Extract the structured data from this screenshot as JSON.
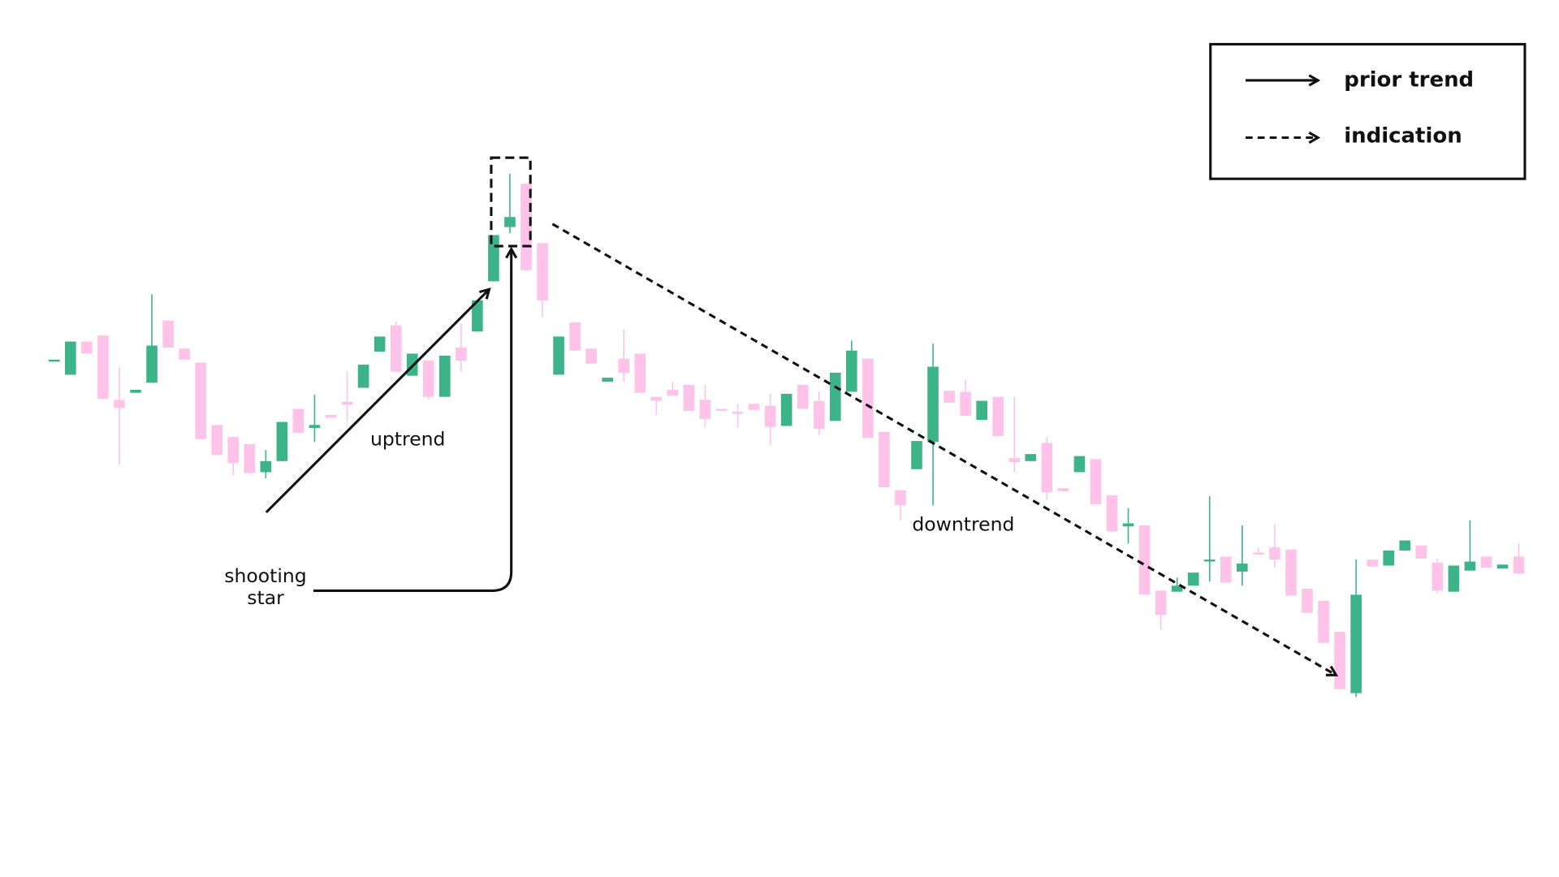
{
  "chart_data": {
    "type": "candlestick",
    "up_color": "#3db38a",
    "down_color": "#ffc3ea",
    "ylim": [
      27,
      900
    ],
    "series": [
      {
        "open": [
          542,
          527,
          560,
          566,
          502,
          509,
          519,
          581,
          553,
          539,
          477,
          465,
          458,
          430,
          441,
          493,
          474,
          487,
          500,
          514,
          550,
          576,
          526,
          541,
          505,
          554,
          570,
          620,
          674,
          717,
          658,
          527,
          579,
          553,
          520,
          543,
          548,
          505,
          512,
          517,
          502,
          493,
          490,
          498,
          496,
          476,
          517,
          501,
          481,
          510,
          543,
          470,
          412,
          433,
          460,
          511,
          510,
          482,
          505,
          444,
          441,
          459,
          414,
          430,
          443,
          407,
          376,
          377,
          312,
          311,
          317,
          341,
          346,
          331,
          350,
          355,
          353,
          314,
          302,
          271,
          210,
          343,
          337,
          352,
          357,
          340,
          311,
          332,
          346,
          334,
          346
        ],
        "close": [
          542,
          560,
          548,
          503,
          494,
          512,
          556,
          554,
          542,
          463,
          447,
          439,
          429,
          441,
          480,
          469,
          477,
          484,
          497,
          537,
          565,
          530,
          548,
          505,
          546,
          541,
          601,
          666,
          684,
          631,
          601,
          565,
          551,
          538,
          524,
          529,
          509,
          501,
          506,
          491,
          483,
          491,
          488,
          492,
          475,
          508,
          493,
          473,
          529,
          551,
          464,
          415,
          397,
          461,
          535,
          499,
          486,
          501,
          466,
          440,
          448,
          410,
          411,
          446,
          398,
          371,
          379,
          308,
          288,
          317,
          330,
          343,
          320,
          339,
          348,
          343,
          307,
          290,
          260,
          214,
          308,
          336,
          352,
          362,
          344,
          312,
          337,
          341,
          335,
          338,
          329
        ],
        "high": [
          542,
          560,
          560,
          566,
          534,
          512,
          607,
          581,
          553,
          539,
          477,
          465,
          458,
          452,
          480,
          493,
          507,
          487,
          530,
          537,
          565,
          580,
          548,
          541,
          546,
          578,
          601,
          666,
          727,
          717,
          658,
          565,
          579,
          553,
          524,
          572,
          548,
          505,
          520,
          517,
          517,
          493,
          498,
          498,
          508,
          508,
          517,
          510,
          529,
          561,
          543,
          470,
          412,
          461,
          558,
          511,
          522,
          501,
          505,
          505,
          448,
          465,
          414,
          446,
          443,
          407,
          394,
          377,
          312,
          325,
          330,
          406,
          346,
          377,
          355,
          378,
          353,
          314,
          302,
          271,
          343,
          343,
          352,
          362,
          357,
          344,
          337,
          382,
          346,
          338,
          359
        ],
        "low": [
          542,
          527,
          548,
          503,
          438,
          509,
          519,
          554,
          542,
          463,
          447,
          427,
          429,
          424,
          441,
          469,
          460,
          484,
          480,
          514,
          550,
          530,
          526,
          502,
          505,
          530,
          570,
          620,
          668,
          631,
          584,
          527,
          551,
          538,
          520,
          520,
          509,
          487,
          506,
          491,
          475,
          491,
          474,
          492,
          457,
          476,
          493,
          467,
          481,
          510,
          464,
          415,
          382,
          433,
          397,
          499,
          486,
          482,
          466,
          430,
          441,
          402,
          411,
          430,
          398,
          371,
          359,
          308,
          273,
          311,
          317,
          321,
          320,
          317,
          348,
          335,
          307,
          290,
          260,
          214,
          206,
          336,
          337,
          352,
          344,
          309,
          311,
          332,
          335,
          334,
          329
        ]
      }
    ],
    "annotations": [
      "uptrend",
      "downtrend",
      "shooting star"
    ],
    "legend": [
      "prior trend",
      "indication"
    ]
  }
}
